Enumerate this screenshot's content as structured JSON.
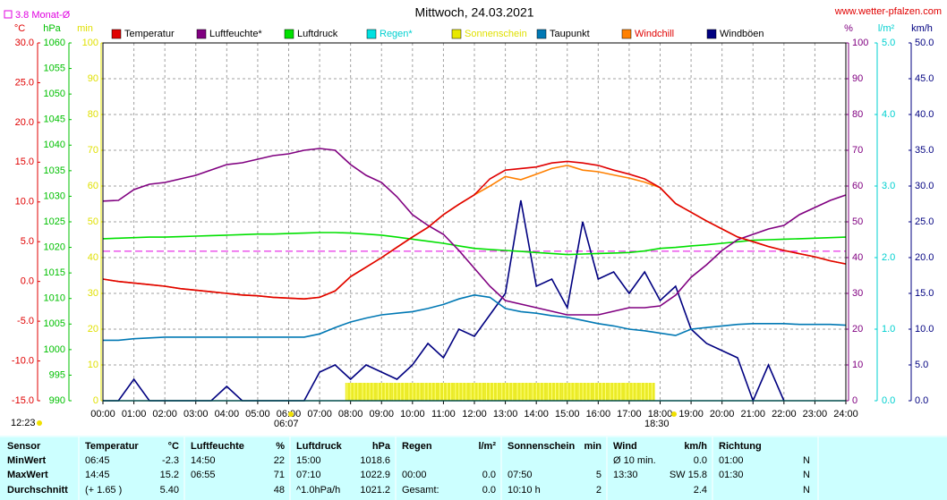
{
  "chart_data": {
    "type": "line",
    "title": "Mittwoch, 24.03.2021",
    "source": "www.wetter-pfalzen.com",
    "xlim": [
      0,
      24
    ],
    "xticks": [
      {
        "value": 0,
        "label": "00:00"
      },
      {
        "value": 1,
        "label": "01:00"
      },
      {
        "value": 2,
        "label": "02:00"
      },
      {
        "value": 3,
        "label": "03:00"
      },
      {
        "value": 4,
        "label": "04:00"
      },
      {
        "value": 5,
        "label": "05:00"
      },
      {
        "value": 6,
        "label": "06:00"
      },
      {
        "value": 7,
        "label": "07:00"
      },
      {
        "value": 8,
        "label": "08:00"
      },
      {
        "value": 9,
        "label": "09:00"
      },
      {
        "value": 10,
        "label": "10:00"
      },
      {
        "value": 11,
        "label": "11:00"
      },
      {
        "value": 12,
        "label": "12:00"
      },
      {
        "value": 13,
        "label": "13:00"
      },
      {
        "value": 14,
        "label": "14:00"
      },
      {
        "value": 15,
        "label": "15:00"
      },
      {
        "value": 16,
        "label": "16:00"
      },
      {
        "value": 17,
        "label": "17:00"
      },
      {
        "value": 18,
        "label": "18:00"
      },
      {
        "value": 19,
        "label": "19:00"
      },
      {
        "value": 20,
        "label": "20:00"
      },
      {
        "value": 21,
        "label": "21:00"
      },
      {
        "value": 22,
        "label": "22:00"
      },
      {
        "value": 23,
        "label": "23:00"
      },
      {
        "value": 24,
        "label": "24:00"
      }
    ],
    "grid": true,
    "axes": [
      {
        "unit": "°C",
        "color": "#e00000",
        "side": "left",
        "lim": [
          -15,
          30
        ],
        "ticks": [
          {
            "value": -15,
            "label": "-15.0"
          },
          {
            "value": -10,
            "label": "-10.0"
          },
          {
            "value": -5,
            "label": "-5.0"
          },
          {
            "value": 0,
            "label": "0.0"
          },
          {
            "value": 5,
            "label": "5.0"
          },
          {
            "value": 10,
            "label": "10.0"
          },
          {
            "value": 15,
            "label": "15.0"
          },
          {
            "value": 20,
            "label": "20.0"
          },
          {
            "value": 25,
            "label": "25.0"
          },
          {
            "value": 30,
            "label": "30.0"
          }
        ]
      },
      {
        "unit": "hPa",
        "color": "#00c000",
        "side": "left",
        "lim": [
          990,
          1060
        ],
        "ticks": [
          990,
          995,
          1000,
          1005,
          1010,
          1015,
          1020,
          1025,
          1030,
          1035,
          1040,
          1045,
          1050,
          1055,
          1060
        ]
      },
      {
        "unit": "min",
        "color": "#e0e000",
        "side": "left",
        "lim": [
          0,
          100
        ],
        "grid": true,
        "ticks": [
          0,
          10,
          20,
          30,
          40,
          50,
          60,
          70,
          80,
          90,
          100
        ]
      },
      {
        "unit": "%",
        "color": "#800080",
        "side": "right",
        "lim": [
          0,
          100
        ],
        "ticks": [
          0,
          10,
          20,
          30,
          40,
          50,
          60,
          70,
          80,
          90,
          100
        ]
      },
      {
        "unit": "l/m²",
        "color": "#00d0d0",
        "side": "right",
        "lim": [
          0,
          5
        ],
        "ticks": [
          {
            "value": 0,
            "label": "0.0"
          },
          {
            "value": 1,
            "label": "1.0"
          },
          {
            "value": 2,
            "label": "2.0"
          },
          {
            "value": 3,
            "label": "3.0"
          },
          {
            "value": 4,
            "label": "4.0"
          },
          {
            "value": 5,
            "label": "5.0"
          }
        ]
      },
      {
        "unit": "km/h",
        "color": "#000080",
        "side": "right",
        "lim": [
          0,
          50
        ],
        "ticks": [
          {
            "value": 0,
            "label": "0.0"
          },
          {
            "value": 5,
            "label": "5.0"
          },
          {
            "value": 10,
            "label": "10.0"
          },
          {
            "value": 15,
            "label": "15.0"
          },
          {
            "value": 20,
            "label": "20.0"
          },
          {
            "value": 25,
            "label": "25.0"
          },
          {
            "value": 30,
            "label": "30.0"
          },
          {
            "value": 35,
            "label": "35.0"
          },
          {
            "value": 40,
            "label": "40.0"
          },
          {
            "value": 45,
            "label": "45.0"
          },
          {
            "value": 50,
            "label": "50.0"
          }
        ]
      }
    ],
    "reference": {
      "label": "3.8 Monat-Ø",
      "value": 3.8,
      "axis": 0,
      "color": "#e000e0"
    },
    "annotations": [
      "12:23",
      "06:07",
      "18:30"
    ],
    "x": [
      0,
      0.5,
      1,
      1.5,
      2,
      2.5,
      3,
      3.5,
      4,
      4.5,
      5,
      5.5,
      6,
      6.5,
      7,
      7.5,
      8,
      8.5,
      9,
      9.5,
      10,
      10.5,
      11,
      11.5,
      12,
      12.5,
      13,
      13.5,
      14,
      14.5,
      15,
      15.5,
      16,
      16.5,
      17,
      17.5,
      18,
      18.5,
      19,
      19.5,
      20,
      20.5,
      21,
      21.5,
      22,
      22.5,
      23,
      23.5,
      24
    ],
    "series": [
      {
        "name": "Temperatur",
        "color": "#e00000",
        "legend_text": "#000000",
        "axis": 0,
        "kind": "line",
        "values": [
          0.3,
          0.0,
          -0.2,
          -0.4,
          -0.6,
          -0.9,
          -1.1,
          -1.3,
          -1.5,
          -1.7,
          -1.8,
          -2.0,
          -2.1,
          -2.2,
          -2.0,
          -1.2,
          0.6,
          1.8,
          3.0,
          4.3,
          5.6,
          6.8,
          8.4,
          9.7,
          10.9,
          12.9,
          14.0,
          14.2,
          14.4,
          14.9,
          15.1,
          14.9,
          14.6,
          14.0,
          13.5,
          12.9,
          11.8,
          9.8,
          8.7,
          7.6,
          6.6,
          5.6,
          5.0,
          4.4,
          3.9,
          3.5,
          3.1,
          2.6,
          2.2
        ]
      },
      {
        "name": "Luftfeuchte*",
        "color": "#800080",
        "legend_text": "#000000",
        "axis": 3,
        "kind": "line",
        "values": [
          55.8,
          56,
          59,
          60.5,
          61,
          62,
          63,
          64.5,
          66,
          66.5,
          67.5,
          68.5,
          69,
          70,
          70.5,
          70,
          66,
          63,
          61,
          57,
          52,
          49,
          46.5,
          42,
          37,
          32,
          28,
          27,
          26,
          25,
          24,
          24,
          24,
          25,
          26,
          26,
          26.5,
          29.5,
          34.5,
          38,
          42,
          45,
          46.5,
          48,
          49,
          52,
          54,
          56,
          57.5
        ]
      },
      {
        "name": "Luftdruck",
        "color": "#00e000",
        "legend_text": "#000000",
        "axis": 1,
        "kind": "line",
        "values": [
          1021.7,
          1021.8,
          1021.9,
          1022.0,
          1022.0,
          1022.1,
          1022.2,
          1022.3,
          1022.4,
          1022.5,
          1022.6,
          1022.6,
          1022.7,
          1022.8,
          1022.9,
          1022.9,
          1022.8,
          1022.6,
          1022.4,
          1022.0,
          1021.6,
          1021.2,
          1020.8,
          1020.3,
          1019.8,
          1019.6,
          1019.4,
          1019.2,
          1019.0,
          1018.8,
          1018.6,
          1018.7,
          1018.8,
          1018.9,
          1019.0,
          1019.3,
          1019.8,
          1020.0,
          1020.3,
          1020.5,
          1020.8,
          1021.1,
          1021.4,
          1021.5,
          1021.6,
          1021.7,
          1021.8,
          1021.9,
          1022.0
        ]
      },
      {
        "name": "Regen*",
        "color": "#00e0e0",
        "legend_text": "#00d0d0",
        "axis": 4,
        "kind": "line",
        "values": [
          0,
          0,
          0,
          0,
          0,
          0,
          0,
          0,
          0,
          0,
          0,
          0,
          0,
          0,
          0,
          0,
          0,
          0,
          0,
          0,
          0,
          0,
          0,
          0,
          0,
          0,
          0,
          0,
          0,
          0,
          0,
          0,
          0,
          0,
          0,
          0,
          0,
          0,
          0,
          0,
          0,
          0,
          0,
          0,
          0,
          0,
          0,
          0,
          0
        ]
      },
      {
        "name": "Sonnenschein",
        "color": "#e8e800",
        "legend_text": "#e0e000",
        "axis": 2,
        "kind": "bar",
        "x": [
          7.83,
          8.33,
          8.83,
          9.33,
          9.83,
          10.33,
          10.83,
          11.33,
          11.83,
          12.33,
          12.83,
          13.33,
          13.83,
          14.33,
          14.83,
          15.33,
          15.83,
          16.33,
          16.83,
          17.33
        ],
        "values": [
          5,
          5,
          5,
          5,
          5,
          5,
          5,
          5,
          5,
          5,
          5,
          5,
          5,
          5,
          5,
          5,
          5,
          5,
          5,
          5
        ]
      },
      {
        "name": "Taupunkt",
        "color": "#0078b4",
        "legend_text": "#000000",
        "axis": 0,
        "kind": "line",
        "values": [
          -7.4,
          -7.4,
          -7.2,
          -7.1,
          -7.0,
          -7.0,
          -7.0,
          -7.0,
          -7.0,
          -7.0,
          -7.0,
          -7.0,
          -7.0,
          -7.0,
          -6.6,
          -5.8,
          -5.1,
          -4.6,
          -4.2,
          -4.0,
          -3.8,
          -3.4,
          -2.9,
          -2.2,
          -1.7,
          -2.0,
          -3.4,
          -3.8,
          -4.0,
          -4.3,
          -4.5,
          -4.9,
          -5.3,
          -5.6,
          -6.0,
          -6.2,
          -6.5,
          -6.8,
          -6.0,
          -5.8,
          -5.6,
          -5.4,
          -5.3,
          -5.3,
          -5.3,
          -5.4,
          -5.4,
          -5.4,
          -5.5
        ]
      },
      {
        "name": "Windchill",
        "color": "#ff8000",
        "legend_text": "#e00000",
        "axis": 0,
        "kind": "line",
        "values": [
          0.3,
          0.0,
          -0.2,
          -0.4,
          -0.6,
          -0.9,
          -1.1,
          -1.3,
          -1.5,
          -1.7,
          -1.8,
          -2.0,
          -2.1,
          -2.2,
          -2.0,
          -1.2,
          0.6,
          1.8,
          3.0,
          4.3,
          5.6,
          6.8,
          8.4,
          9.7,
          10.9,
          12.0,
          13.2,
          12.8,
          13.5,
          14.2,
          14.6,
          14.0,
          13.8,
          13.4,
          13.0,
          12.5,
          11.8,
          9.8,
          8.7,
          7.6,
          6.6,
          5.6,
          5.0,
          4.4,
          3.9,
          3.5,
          3.1,
          2.6,
          2.2
        ]
      },
      {
        "name": "Windböen",
        "color": "#000080",
        "legend_text": "#000000",
        "axis": 5,
        "kind": "line",
        "values": [
          0,
          0,
          3,
          0,
          0,
          0,
          0,
          0,
          2,
          0,
          0,
          0,
          0,
          0,
          4,
          5,
          3,
          5,
          4,
          3,
          5,
          8,
          6,
          10,
          9,
          12,
          15,
          28,
          16,
          17,
          13,
          25,
          17,
          18,
          15,
          18,
          14,
          16,
          10,
          8,
          7,
          6,
          0,
          5,
          0,
          null,
          null,
          null,
          null
        ]
      }
    ]
  },
  "table": {
    "header": [
      "Sensor",
      "Temperatur",
      "°C",
      "Luftfeuchte",
      "%",
      "Luftdruck",
      "hPa",
      "Regen",
      "l/m²",
      "Sonnenschein",
      "min",
      "Wind",
      "km/h",
      "Richtung",
      null
    ],
    "rows": [
      [
        "MinWert",
        "06:45",
        "-2.3",
        "14:50",
        "22",
        "15:00",
        "1018.6",
        null,
        null,
        null,
        null,
        "Ø 10 min.",
        "0.0",
        "01:00",
        "N"
      ],
      [
        "MaxWert",
        "14:45",
        "15.2",
        "06:55",
        "71",
        "07:10",
        "1022.9",
        "00:00",
        "0.0",
        "07:50",
        "5",
        "13:30",
        "SW 15.8",
        "01:30",
        "N"
      ],
      [
        "Durchschnitt",
        "(+ 1.65 )",
        "5.40",
        null,
        "48",
        "^1.0hPa/h",
        "1021.2",
        "Gesamt:",
        "0.0",
        "10:10 h",
        "2",
        null,
        "2.4",
        null,
        "N"
      ]
    ]
  }
}
